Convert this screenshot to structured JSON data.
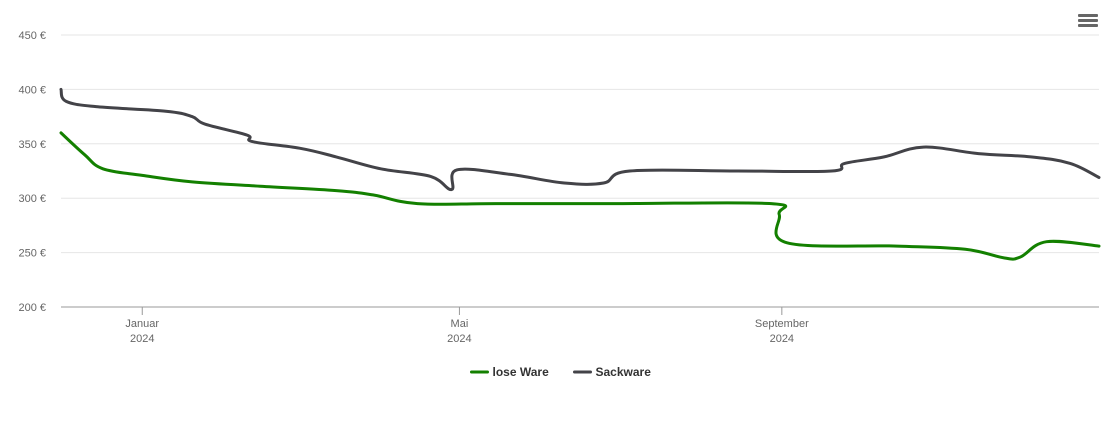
{
  "chart_data": {
    "type": "line",
    "title": "",
    "xlabel": "",
    "ylabel": "",
    "ylim": [
      200,
      450
    ],
    "xlim": [
      "2023-12-01",
      "2024-12-31"
    ],
    "y_ticks": [
      {
        "value": 200,
        "label": "200 €"
      },
      {
        "value": 250,
        "label": "250 €"
      },
      {
        "value": 300,
        "label": "300 €"
      },
      {
        "value": 350,
        "label": "350 €"
      },
      {
        "value": 400,
        "label": "400 €"
      },
      {
        "value": 450,
        "label": "450 €"
      }
    ],
    "x_ticks": [
      {
        "date": "2024-01-01",
        "month": "Januar",
        "year": "2024"
      },
      {
        "date": "2024-05-01",
        "month": "Mai",
        "year": "2024"
      },
      {
        "date": "2024-09-01",
        "month": "September",
        "year": "2024"
      }
    ],
    "grid": true,
    "legend": "bottom-center",
    "series": [
      {
        "name": "lose Ware",
        "color": "#138000",
        "points": [
          {
            "x": "2023-12-01",
            "y": 360
          },
          {
            "x": "2023-12-10",
            "y": 340
          },
          {
            "x": "2023-12-17",
            "y": 327
          },
          {
            "x": "2024-01-01",
            "y": 321
          },
          {
            "x": "2024-01-20",
            "y": 315
          },
          {
            "x": "2024-02-15",
            "y": 311
          },
          {
            "x": "2024-03-15",
            "y": 307
          },
          {
            "x": "2024-03-29",
            "y": 303
          },
          {
            "x": "2024-04-15",
            "y": 295
          },
          {
            "x": "2024-05-15",
            "y": 295
          },
          {
            "x": "2024-07-01",
            "y": 295
          },
          {
            "x": "2024-08-28",
            "y": 295
          },
          {
            "x": "2024-08-31",
            "y": 285
          },
          {
            "x": "2024-09-03",
            "y": 259
          },
          {
            "x": "2024-10-15",
            "y": 256
          },
          {
            "x": "2024-11-10",
            "y": 253
          },
          {
            "x": "2024-11-25",
            "y": 245
          },
          {
            "x": "2024-12-01",
            "y": 246
          },
          {
            "x": "2024-12-11",
            "y": 260
          },
          {
            "x": "2024-12-31",
            "y": 256
          }
        ]
      },
      {
        "name": "Sackware",
        "color": "#434348",
        "points": [
          {
            "x": "2023-12-01",
            "y": 400
          },
          {
            "x": "2023-12-03",
            "y": 389
          },
          {
            "x": "2023-12-15",
            "y": 384
          },
          {
            "x": "2024-01-10",
            "y": 380
          },
          {
            "x": "2024-01-20",
            "y": 375
          },
          {
            "x": "2024-01-25",
            "y": 368
          },
          {
            "x": "2024-02-10",
            "y": 358
          },
          {
            "x": "2024-02-12",
            "y": 352
          },
          {
            "x": "2024-03-01",
            "y": 346
          },
          {
            "x": "2024-03-15",
            "y": 338
          },
          {
            "x": "2024-04-01",
            "y": 327
          },
          {
            "x": "2024-04-20",
            "y": 320
          },
          {
            "x": "2024-04-28",
            "y": 308
          },
          {
            "x": "2024-04-30",
            "y": 326
          },
          {
            "x": "2024-05-20",
            "y": 322
          },
          {
            "x": "2024-06-10",
            "y": 314
          },
          {
            "x": "2024-06-25",
            "y": 314
          },
          {
            "x": "2024-07-05",
            "y": 325
          },
          {
            "x": "2024-08-15",
            "y": 325
          },
          {
            "x": "2024-09-20",
            "y": 325
          },
          {
            "x": "2024-09-25",
            "y": 332
          },
          {
            "x": "2024-10-10",
            "y": 338
          },
          {
            "x": "2024-10-25",
            "y": 347
          },
          {
            "x": "2024-11-15",
            "y": 341
          },
          {
            "x": "2024-12-05",
            "y": 338
          },
          {
            "x": "2024-12-20",
            "y": 332
          },
          {
            "x": "2024-12-31",
            "y": 319
          }
        ]
      }
    ]
  },
  "menu": {
    "icon": "hamburger-menu-icon"
  }
}
